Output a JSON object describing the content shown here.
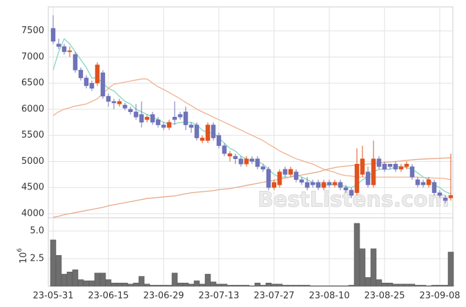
{
  "chart_data": {
    "type": "candlestick",
    "watermark": "BestListens.com",
    "categories": [
      "23-05-31",
      null,
      null,
      null,
      null,
      null,
      null,
      null,
      null,
      null,
      "23-06-15",
      null,
      null,
      null,
      null,
      null,
      null,
      null,
      null,
      null,
      "23-06-29",
      null,
      null,
      null,
      null,
      null,
      null,
      null,
      null,
      null,
      "23-07-13",
      null,
      null,
      null,
      null,
      null,
      null,
      null,
      null,
      null,
      "23-07-27",
      null,
      null,
      null,
      null,
      null,
      null,
      null,
      null,
      null,
      "23-08-10",
      null,
      null,
      null,
      null,
      null,
      null,
      null,
      null,
      null,
      "23-08-25",
      null,
      null,
      null,
      null,
      null,
      null,
      null,
      null,
      null,
      "23-09-08",
      null,
      null
    ],
    "open": [
      7550,
      7250,
      7200,
      7100,
      7050,
      6750,
      6600,
      6500,
      6500,
      6700,
      6250,
      6150,
      6100,
      6080,
      6000,
      5950,
      5900,
      5800,
      5900,
      5800,
      5700,
      5650,
      5850,
      5900,
      5950,
      5700,
      5700,
      5400,
      5400,
      5700,
      5500,
      5300,
      5100,
      5100,
      5050,
      4950,
      5050,
      5050,
      4900,
      4850,
      4500,
      4550,
      4850,
      4750,
      4800,
      4650,
      4600,
      4600,
      4600,
      4500,
      4600,
      4550,
      4600,
      4500,
      4450,
      4400,
      4750,
      4800,
      4550,
      5050,
      4950,
      4950,
      4950,
      4850,
      4900,
      4900,
      4650,
      4600,
      4550,
      4600,
      4400,
      4300,
      4300
    ],
    "high": [
      7800,
      7350,
      7250,
      7200,
      7100,
      6800,
      6650,
      6550,
      6900,
      6750,
      6300,
      6200,
      6200,
      6120,
      6050,
      6100,
      6150,
      5900,
      5950,
      5850,
      5750,
      5800,
      6150,
      5950,
      6050,
      5750,
      5750,
      5500,
      5750,
      5750,
      5550,
      5350,
      5200,
      5150,
      5100,
      5100,
      5100,
      5100,
      4950,
      4900,
      4650,
      4850,
      4900,
      4900,
      4850,
      4700,
      4700,
      4650,
      4650,
      4650,
      4650,
      4650,
      4650,
      4550,
      4500,
      5250,
      5300,
      4900,
      5400,
      5100,
      5000,
      4950,
      5000,
      4950,
      5000,
      4950,
      4700,
      4650,
      4700,
      4650,
      4450,
      4350,
      5150
    ],
    "low": [
      7250,
      7150,
      7050,
      7000,
      6700,
      6550,
      6400,
      6350,
      6450,
      6200,
      6050,
      6000,
      6050,
      5980,
      5900,
      5800,
      5650,
      5750,
      5700,
      5650,
      5600,
      5600,
      5700,
      5800,
      5600,
      5550,
      5400,
      5350,
      5350,
      5400,
      5250,
      5100,
      5000,
      4950,
      4900,
      4900,
      4950,
      4850,
      4800,
      4450,
      4450,
      4500,
      4700,
      4700,
      4600,
      4550,
      4450,
      4500,
      4450,
      4450,
      4500,
      4500,
      4450,
      4400,
      4300,
      4350,
      4700,
      4500,
      4500,
      4850,
      4800,
      4850,
      4800,
      4800,
      4850,
      4650,
      4500,
      4500,
      4500,
      4350,
      4300,
      4200,
      4250
    ],
    "close": [
      7300,
      7200,
      7100,
      7120,
      6750,
      6600,
      6450,
      6400,
      6850,
      6250,
      6150,
      6120,
      6150,
      6020,
      5950,
      5850,
      5750,
      5850,
      5750,
      5700,
      5650,
      5750,
      5800,
      5850,
      5700,
      5650,
      5450,
      5450,
      5700,
      5450,
      5300,
      5150,
      5150,
      5050,
      4950,
      5050,
      5000,
      4900,
      4850,
      4500,
      4600,
      4800,
      4750,
      4850,
      4650,
      4600,
      4500,
      4550,
      4500,
      4600,
      4550,
      4600,
      4500,
      4450,
      4350,
      4950,
      5050,
      4550,
      5050,
      4900,
      4850,
      4900,
      4850,
      4900,
      4950,
      4700,
      4550,
      4550,
      4650,
      4400,
      4350,
      4250,
      4350
    ],
    "up_color": "#e0521e",
    "down_color": "#6f73b8",
    "series": [
      {
        "color": "#7fd8c0",
        "values": [
          6750,
          7100,
          7350,
          7250,
          7100,
          6950,
          6800,
          6600,
          6600,
          6500,
          6400,
          6350,
          6250,
          6150,
          6100,
          6000,
          5950,
          5900,
          5850,
          5800,
          5750,
          5720,
          5720,
          5750,
          5750,
          5750,
          5700,
          5600,
          5550,
          5550,
          5450,
          5350,
          5250,
          5200,
          5100,
          5050,
          5000,
          5000,
          4950,
          4850,
          4750,
          4700,
          4700,
          4700,
          4750,
          4700,
          4650,
          4600,
          4550,
          4550,
          4550,
          4550,
          4550,
          4520,
          4500,
          4550,
          4650,
          4700,
          4800,
          4850,
          4850,
          4850,
          4900,
          4900,
          4880,
          4850,
          4780,
          4700,
          4650,
          4550,
          4500,
          4420,
          4380
        ]
      },
      {
        "color": "#f0b090",
        "values": [
          5880,
          5950,
          6000,
          6030,
          6060,
          6080,
          6100,
          6150,
          6200,
          6300,
          6400,
          6480,
          6500,
          6520,
          6540,
          6560,
          6580,
          6580,
          6500,
          6430,
          6380,
          6320,
          6260,
          6200,
          6130,
          6070,
          6000,
          5950,
          5900,
          5850,
          5800,
          5750,
          5700,
          5650,
          5600,
          5550,
          5500,
          5450,
          5400,
          5330,
          5270,
          5200,
          5150,
          5100,
          5050,
          5020,
          4980,
          4950,
          4900,
          4850,
          4820,
          4790,
          4750,
          4730,
          4720,
          4700,
          4700,
          4700,
          4700,
          4700,
          4700,
          4700,
          4700,
          4700,
          4700,
          4700,
          4700,
          4690,
          4690,
          4680,
          4680,
          4670,
          4650
        ]
      },
      {
        "color": "#e8a888",
        "values": [
          3930,
          3950,
          3980,
          4000,
          4020,
          4040,
          4060,
          4080,
          4100,
          4120,
          4150,
          4170,
          4190,
          4210,
          4230,
          4250,
          4270,
          4290,
          4300,
          4310,
          4320,
          4330,
          4340,
          4360,
          4380,
          4400,
          4410,
          4420,
          4430,
          4440,
          4460,
          4470,
          4480,
          4500,
          4520,
          4540,
          4560,
          4580,
          4600,
          4620,
          4640,
          4660,
          4680,
          4700,
          4720,
          4740,
          4760,
          4780,
          4800,
          4830,
          4860,
          4880,
          4900,
          4910,
          4920,
          4930,
          4940,
          4950,
          4960,
          4970,
          4980,
          4990,
          5000,
          5010,
          5020,
          5030,
          5040,
          5045,
          5050,
          5055,
          5060,
          5065,
          5070
        ]
      }
    ],
    "ylim": [
      3920,
      7960
    ],
    "yticks": [
      4000,
      4500,
      5000,
      5500,
      6000,
      6500,
      7000,
      7500
    ],
    "grid": true,
    "volume": {
      "color": "#6e6e6e",
      "label_base": "10",
      "label_exponent": "6",
      "ylim": [
        0,
        6.2
      ],
      "yticks": [
        2.5,
        {
          "value": 5,
          "label": "5.0"
        }
      ],
      "values": [
        4.2,
        2.8,
        1.1,
        1.3,
        1.5,
        0.6,
        0.5,
        0.5,
        1.2,
        1.2,
        0.6,
        0.3,
        0.3,
        0.3,
        0.2,
        0.3,
        0.9,
        0.2,
        0.1,
        0.1,
        0.1,
        0.1,
        1.2,
        0.3,
        0.3,
        0.2,
        0.5,
        0.2,
        1.1,
        0.4,
        0.2,
        0.2,
        0.1,
        0.1,
        0.1,
        0.1,
        0.05,
        0.3,
        0.1,
        0.3,
        0.2,
        0.2,
        0.1,
        0.1,
        0.1,
        0.1,
        0.1,
        0.05,
        0.05,
        0.05,
        0.05,
        0.05,
        0.05,
        0.05,
        0.1,
        5.7,
        3.4,
        0.8,
        3.4,
        0.6,
        0.3,
        0.3,
        0.2,
        0.2,
        0.2,
        0.2,
        0.1,
        0.1,
        0.05,
        0.1,
        0.1,
        0.1,
        3.1
      ]
    }
  }
}
